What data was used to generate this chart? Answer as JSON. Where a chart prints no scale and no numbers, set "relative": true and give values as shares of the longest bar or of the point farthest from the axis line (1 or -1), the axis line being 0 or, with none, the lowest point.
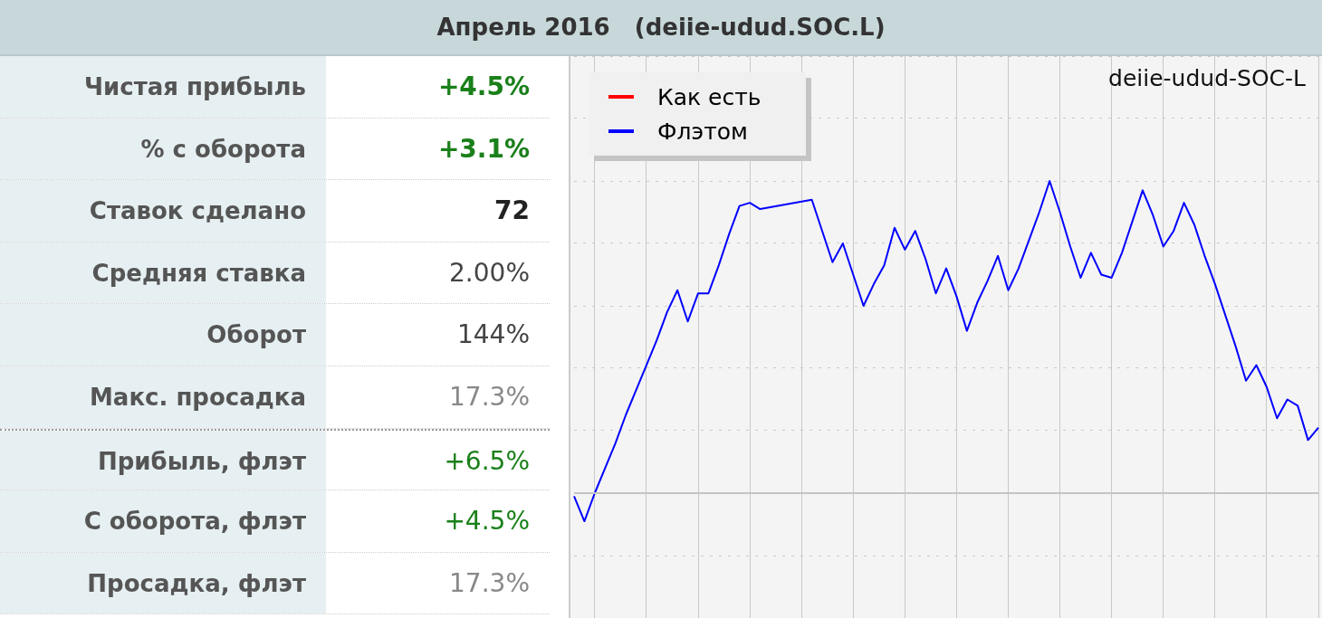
{
  "chart_data": [
    {
      "type": "other",
      "title": "Апрель 2016   (deiie-udud.SOC.L)",
      "annotations": [
        "Чистая прибыль",
        "+4.5%",
        "% с оборота",
        "+3.1%",
        "Ставок сделано",
        "72",
        "Средняя ставка",
        "2.00%",
        "Оборот",
        "144%",
        "Макс. просадка",
        "17.3%",
        "Прибыль, флэт",
        "+6.5%",
        "С оборота, флэт",
        "+4.5%",
        "Просадка, флэт",
        "17.3%"
      ]
    },
    {
      "type": "line",
      "title": "deiie-udud-SOC-L",
      "relative": true,
      "grid": true,
      "legend": "top left",
      "marker": "none",
      "categories": [
        null,
        null,
        null,
        null,
        null,
        null,
        null,
        null,
        null,
        null,
        null,
        null,
        null,
        null,
        null,
        null,
        null,
        null,
        null,
        null,
        null,
        null,
        null,
        null,
        null,
        null,
        null,
        null,
        null,
        null,
        null,
        null,
        null,
        null,
        null,
        null,
        null,
        null,
        null,
        null,
        null,
        null,
        null,
        null,
        null,
        null,
        null,
        null,
        null,
        null,
        null,
        null,
        null,
        null,
        null,
        null,
        null,
        null,
        null,
        null,
        null,
        null,
        null,
        null,
        null,
        null,
        null,
        null,
        null,
        null,
        null,
        null,
        null
      ],
      "series": [
        {
          "name": "Как есть",
          "color": "#ff0000",
          "values": [
            null,
            null,
            null,
            null,
            null,
            null,
            null,
            null,
            null,
            null,
            null,
            null,
            null,
            null,
            null,
            null,
            null,
            null,
            null,
            null,
            null,
            null,
            null,
            null,
            null,
            null,
            null,
            null,
            null,
            null,
            null,
            null,
            null,
            null,
            null,
            null,
            null,
            null,
            null,
            null,
            null,
            null,
            null,
            null,
            null,
            null,
            null,
            null,
            null,
            null,
            null,
            null,
            null,
            null,
            null,
            null,
            null,
            null,
            null,
            null,
            null,
            null,
            null,
            null,
            null,
            null,
            null,
            null,
            null,
            null,
            null,
            null,
            null
          ]
        },
        {
          "name": "Флэтом",
          "color": "#0000ff",
          "values": [
            -0.01,
            -0.09,
            0.0,
            0.08,
            0.16,
            0.25,
            0.33,
            0.41,
            0.49,
            0.58,
            0.65,
            0.55,
            0.64,
            0.64,
            0.73,
            0.83,
            0.92,
            0.93,
            0.91,
            null,
            null,
            null,
            null,
            0.94,
            0.84,
            0.74,
            0.8,
            0.7,
            0.6,
            0.67,
            0.73,
            0.85,
            0.78,
            0.84,
            0.75,
            0.64,
            0.72,
            0.63,
            0.52,
            0.61,
            0.68,
            0.76,
            0.65,
            0.72,
            0.81,
            0.9,
            1.0,
            0.9,
            0.79,
            0.69,
            0.77,
            0.7,
            0.69,
            0.77,
            0.87,
            0.97,
            0.89,
            0.79,
            0.84,
            0.93,
            0.86,
            0.76,
            0.67,
            0.57,
            0.47,
            0.36,
            0.41,
            0.34,
            0.24,
            0.3,
            0.28,
            0.17,
            0.21
          ]
        }
      ]
    }
  ]
}
